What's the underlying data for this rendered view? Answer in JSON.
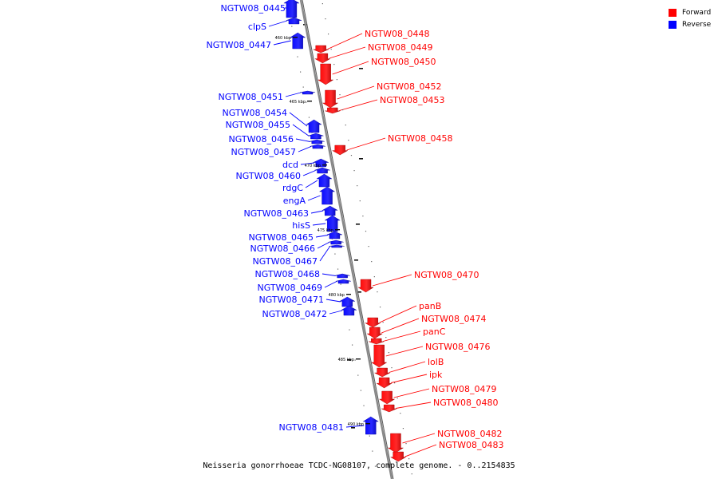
{
  "legend": [
    {
      "label": "Forward",
      "color": "#ff0000"
    },
    {
      "label": "Reverse",
      "color": "#0000ff"
    }
  ],
  "caption": "Neisseria gonorrhoeae TCDC-NG08107, complete genome. - 0..2154835",
  "colors": {
    "forward": "#ff0000",
    "reverse": "#0000ff",
    "backbone": "#888888"
  },
  "ticks": [
    "460 kbp",
    "465 kbp",
    "470 kbp",
    "475 kbp",
    "480 kbp",
    "485 kbp",
    "490 kbp"
  ],
  "genes": [
    {
      "name": "NGTW08_0445",
      "strand": "reverse"
    },
    {
      "name": "clpS",
      "strand": "reverse"
    },
    {
      "name": "NGTW08_0447",
      "strand": "reverse"
    },
    {
      "name": "NGTW08_0448",
      "strand": "forward"
    },
    {
      "name": "NGTW08_0449",
      "strand": "forward"
    },
    {
      "name": "NGTW08_0450",
      "strand": "forward"
    },
    {
      "name": "NGTW08_0451",
      "strand": "reverse"
    },
    {
      "name": "NGTW08_0452",
      "strand": "forward"
    },
    {
      "name": "NGTW08_0453",
      "strand": "forward"
    },
    {
      "name": "NGTW08_0454",
      "strand": "reverse"
    },
    {
      "name": "NGTW08_0455",
      "strand": "reverse"
    },
    {
      "name": "NGTW08_0456",
      "strand": "reverse"
    },
    {
      "name": "NGTW08_0457",
      "strand": "reverse"
    },
    {
      "name": "NGTW08_0458",
      "strand": "forward"
    },
    {
      "name": "dcd",
      "strand": "reverse"
    },
    {
      "name": "NGTW08_0460",
      "strand": "reverse"
    },
    {
      "name": "rdgC",
      "strand": "reverse"
    },
    {
      "name": "engA",
      "strand": "reverse"
    },
    {
      "name": "NGTW08_0463",
      "strand": "reverse"
    },
    {
      "name": "hisS",
      "strand": "reverse"
    },
    {
      "name": "NGTW08_0465",
      "strand": "reverse"
    },
    {
      "name": "NGTW08_0466",
      "strand": "reverse"
    },
    {
      "name": "NGTW08_0467",
      "strand": "reverse"
    },
    {
      "name": "NGTW08_0468",
      "strand": "reverse"
    },
    {
      "name": "NGTW08_0469",
      "strand": "reverse"
    },
    {
      "name": "NGTW08_0470",
      "strand": "forward"
    },
    {
      "name": "NGTW08_0471",
      "strand": "reverse"
    },
    {
      "name": "NGTW08_0472",
      "strand": "reverse"
    },
    {
      "name": "panB",
      "strand": "forward"
    },
    {
      "name": "NGTW08_0474",
      "strand": "forward"
    },
    {
      "name": "panC",
      "strand": "forward"
    },
    {
      "name": "NGTW08_0476",
      "strand": "forward"
    },
    {
      "name": "lolB",
      "strand": "forward"
    },
    {
      "name": "ipk",
      "strand": "forward"
    },
    {
      "name": "NGTW08_0479",
      "strand": "forward"
    },
    {
      "name": "NGTW08_0480",
      "strand": "forward"
    },
    {
      "name": "NGTW08_0481",
      "strand": "reverse"
    },
    {
      "name": "NGTW08_0482",
      "strand": "forward"
    },
    {
      "name": "NGTW08_0483",
      "strand": "forward"
    }
  ]
}
